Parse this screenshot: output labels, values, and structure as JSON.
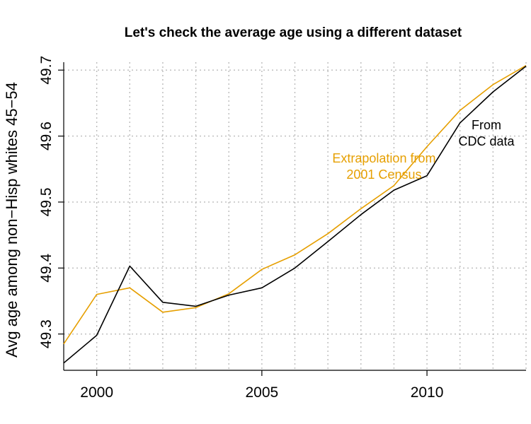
{
  "chart_data": {
    "type": "line",
    "title": "Let's check the average age using a different dataset",
    "xlabel": "",
    "ylabel": "Avg age among non−Hisp whites 45−54",
    "xlim": [
      1999,
      2013
    ],
    "ylim": [
      49.245,
      49.712
    ],
    "x_ticks": [
      2000,
      2005,
      2010
    ],
    "x_tick_labels": [
      "2000",
      "2005",
      "2010"
    ],
    "y_ticks": [
      49.3,
      49.4,
      49.5,
      49.6,
      49.7
    ],
    "y_tick_labels": [
      "49.3",
      "49.4",
      "49.5",
      "49.6",
      "49.7"
    ],
    "grid": true,
    "x": [
      1999,
      2000,
      2001,
      2002,
      2003,
      2004,
      2005,
      2006,
      2007,
      2008,
      2009,
      2010,
      2011,
      2012,
      2013
    ],
    "series": [
      {
        "key": "cdc",
        "color": "#000000",
        "values": [
          49.256,
          49.298,
          49.403,
          49.348,
          49.342,
          49.359,
          49.37,
          49.4,
          49.44,
          49.481,
          49.518,
          49.54,
          49.62,
          49.667,
          49.706
        ]
      },
      {
        "key": "census",
        "color": "#e69f00",
        "values": [
          49.285,
          49.36,
          49.37,
          49.333,
          49.34,
          49.361,
          49.398,
          49.42,
          49.452,
          49.49,
          49.525,
          49.584,
          49.639,
          49.678,
          49.707
        ]
      }
    ],
    "annotations": [
      {
        "key": "census",
        "lines": [
          "Extrapolation from",
          "2001 Census"
        ],
        "color": "#e69f00",
        "x": 2008.7,
        "y": 49.56
      },
      {
        "key": "cdc",
        "lines": [
          "From",
          "CDC data"
        ],
        "color": "#000000",
        "x": 2011.8,
        "y": 49.61
      }
    ]
  }
}
